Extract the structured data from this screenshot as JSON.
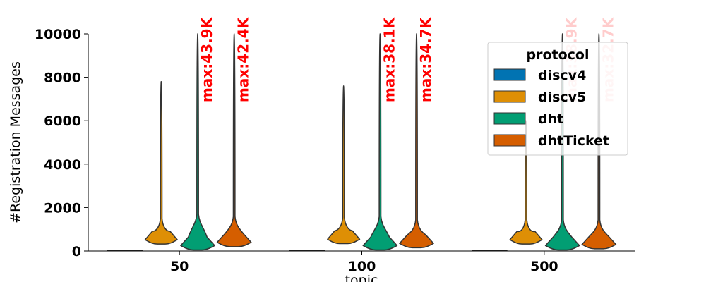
{
  "chart_data": {
    "type": "violin",
    "title": "",
    "xlabel": "topic",
    "ylabel": "#Registration Messages",
    "ylim": [
      0,
      10000
    ],
    "yticks": [
      0,
      2000,
      4000,
      6000,
      8000,
      10000
    ],
    "categories": [
      "50",
      "100",
      "500"
    ],
    "grid": false,
    "legend": {
      "title": "protocol",
      "position": "top-right"
    },
    "series": [
      {
        "name": "discv4",
        "color": "#0173b2",
        "max": [
          0,
          0,
          0
        ],
        "median": [
          0,
          0,
          0
        ],
        "body_top": [
          0,
          0,
          0
        ],
        "width_scale": [
          1.0,
          1.0,
          1.0
        ]
      },
      {
        "name": "discv5",
        "color": "#de8f05",
        "max": [
          7800,
          7600,
          6000
        ],
        "median": [
          520,
          540,
          520
        ],
        "body_top": [
          900,
          950,
          850
        ],
        "width_scale": [
          0.9,
          0.9,
          0.9
        ]
      },
      {
        "name": "dht",
        "color": "#029e73",
        "max": [
          43900,
          38100,
          38900
        ],
        "median": [
          250,
          250,
          250
        ],
        "body_top": [
          1100,
          1000,
          850
        ],
        "width_scale": [
          0.95,
          0.95,
          0.95
        ]
      },
      {
        "name": "dhtTicket",
        "color": "#d55e00",
        "max": [
          42400,
          34700,
          32700
        ],
        "median": [
          400,
          350,
          300
        ],
        "body_top": [
          1000,
          850,
          850
        ],
        "width_scale": [
          0.95,
          0.95,
          0.95
        ]
      }
    ],
    "annotations": [
      {
        "text": "max:43.9K",
        "category": "50",
        "series": "dht",
        "color": "#ff0000",
        "opacity": 1
      },
      {
        "text": "max:42.4K",
        "category": "50",
        "series": "dhtTicket",
        "color": "#ff0000",
        "opacity": 1
      },
      {
        "text": "max:38.1K",
        "category": "100",
        "series": "dht",
        "color": "#ff0000",
        "opacity": 1
      },
      {
        "text": "max:34.7K",
        "category": "100",
        "series": "dhtTicket",
        "color": "#ff0000",
        "opacity": 1
      },
      {
        "text": "max:38.9K",
        "category": "500",
        "series": "dht",
        "color": "#ff0000",
        "opacity": 0.2
      },
      {
        "text": "max:32.7K",
        "category": "500",
        "series": "dhtTicket",
        "color": "#ff0000",
        "opacity": 0.2
      }
    ]
  }
}
